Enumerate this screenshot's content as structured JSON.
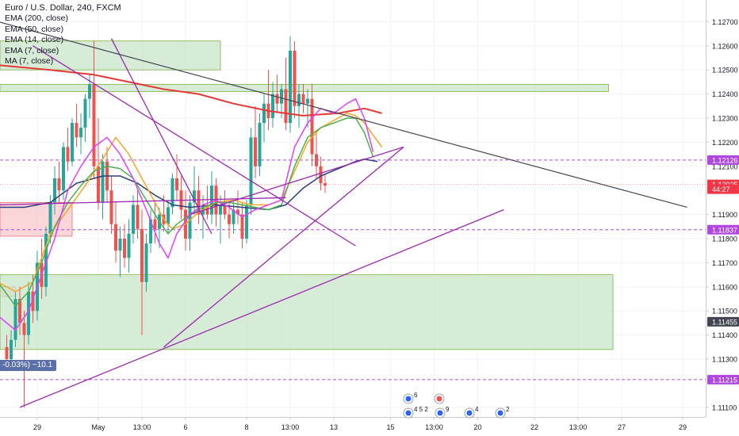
{
  "legend": {
    "title": "Euro / U.S. Dollar, 240, FXCM",
    "indicators": [
      "EMA (200, close)",
      "EMA (50, close)",
      "EMA (14, close)",
      "EMA (7, close)",
      "MA (7, close)"
    ]
  },
  "change_box": "-0.03%) −10.1",
  "colors": {
    "up": "#26a69a",
    "down": "#ef5350",
    "zone_green": "#c8e6c9",
    "zone_red": "#f8c8cc",
    "trendline_purple": "#9c27b0",
    "trendline_dark": "#434651",
    "ema200": "#e53935",
    "ema50": "#2c3e7c",
    "ema14": "#f5a623",
    "ema7": "#4caf50",
    "ma7": "#e040fb",
    "hline_purple": "#b048e0",
    "current_price": "#f23645",
    "badge_bg": "#2962ff"
  },
  "events": [
    {
      "label": "6"
    },
    {
      "label": "4 5 2"
    },
    {
      "label": "9"
    },
    {
      "label": "4"
    },
    {
      "label": "2"
    }
  ],
  "chart_data": {
    "type": "candlestick",
    "symbol": "EURUSD",
    "timeframe": "240",
    "y_axis": {
      "range": [
        1.1106,
        1.1279
      ],
      "ticks": [
        "1.12700",
        "1.12600",
        "1.12500",
        "1.12400",
        "1.12300",
        "1.12200",
        "1.12100",
        "1.11900",
        "1.11800",
        "1.11700",
        "1.11600",
        "1.11500",
        "1.11400",
        "1.11300",
        "1.11100"
      ]
    },
    "x_axis": {
      "ticks": [
        {
          "label": "29",
          "bar": 7
        },
        {
          "label": "May",
          "bar": 21
        },
        {
          "label": "13:00",
          "bar": 31
        },
        {
          "label": "6",
          "bar": 41
        },
        {
          "label": "8",
          "bar": 55
        },
        {
          "label": "13:00",
          "bar": 65
        },
        {
          "label": "13",
          "bar": 75
        },
        {
          "label": "15",
          "bar": 88
        },
        {
          "label": "13:00",
          "bar": 98
        },
        {
          "label": "20",
          "bar": 108
        },
        {
          "label": "22",
          "bar": 121
        },
        {
          "label": "13:00",
          "bar": 131
        },
        {
          "label": "27",
          "bar": 141
        },
        {
          "label": "29",
          "bar": 155
        }
      ]
    },
    "price_badges": [
      {
        "label": "1.12126",
        "value": 1.12126,
        "style": "purple"
      },
      {
        "label": "1.12025",
        "value": 1.12025,
        "style": "current"
      },
      {
        "label": "44:27",
        "value": 1.12005,
        "style": "current"
      },
      {
        "label": "1.11837",
        "value": 1.11837,
        "style": "purple"
      },
      {
        "label": "1.11455",
        "value": 1.11455,
        "style": "dark"
      },
      {
        "label": "1.11215",
        "value": 1.11215,
        "style": "purple"
      }
    ],
    "horizontal_lines": [
      1.12126,
      1.11837,
      1.11215
    ],
    "current_price": 1.12025,
    "zones": [
      {
        "bar_from": -2,
        "bar_to": 49,
        "price_top": 1.1262,
        "price_bottom": 1.125,
        "kind": "green"
      },
      {
        "bar_from": -2,
        "bar_to": 138,
        "price_top": 1.1244,
        "price_bottom": 1.1241,
        "kind": "green"
      },
      {
        "bar_from": -2,
        "bar_to": 15,
        "price_top": 1.1195,
        "price_bottom": 1.1181,
        "kind": "red"
      },
      {
        "bar_from": -2,
        "bar_to": 2,
        "price_top": 1.116,
        "price_bottom": 1.1156,
        "kind": "red"
      },
      {
        "bar_from": -2,
        "bar_to": 139,
        "price_top": 1.1165,
        "price_bottom": 1.1134,
        "kind": "green"
      }
    ],
    "trendlines": [
      {
        "from": [
          24,
          1.1263
        ],
        "to": [
          47,
          1.1182
        ],
        "color": "purple"
      },
      {
        "from": [
          6,
          1.126
        ],
        "to": [
          80,
          1.1177
        ],
        "color": "purple"
      },
      {
        "from": [
          42,
          1.119
        ],
        "to": [
          91,
          1.1218
        ],
        "color": "purple"
      },
      {
        "from": [
          36,
          1.1135
        ],
        "to": [
          91,
          1.1218
        ],
        "color": "purple"
      },
      {
        "from": [
          3,
          1.111
        ],
        "to": [
          114,
          1.1192
        ],
        "color": "purple"
      },
      {
        "from": [
          -2,
          1.1194
        ],
        "to": [
          64,
          1.1197
        ],
        "color": "purple"
      },
      {
        "from": [
          -2,
          1.127
        ],
        "to": [
          156,
          1.1193
        ],
        "color": "dark"
      }
    ],
    "series": [
      {
        "name": "EMA (200, close)",
        "color": "ema200",
        "points": [
          [
            -2,
            1.1252
          ],
          [
            10,
            1.125
          ],
          [
            20,
            1.1248
          ],
          [
            28,
            1.1245
          ],
          [
            36,
            1.1242
          ],
          [
            44,
            1.124
          ],
          [
            52,
            1.1236
          ],
          [
            60,
            1.1233
          ],
          [
            68,
            1.1231
          ],
          [
            76,
            1.1232
          ],
          [
            82,
            1.1234
          ],
          [
            86,
            1.1232
          ]
        ]
      },
      {
        "name": "EMA (50, close)",
        "color": "ema50",
        "points": [
          [
            -2,
            1.1193
          ],
          [
            4,
            1.1193
          ],
          [
            10,
            1.1195
          ],
          [
            16,
            1.1203
          ],
          [
            22,
            1.1206
          ],
          [
            26,
            1.1206
          ],
          [
            30,
            1.1203
          ],
          [
            34,
            1.1198
          ],
          [
            38,
            1.1194
          ],
          [
            42,
            1.1193
          ],
          [
            48,
            1.1194
          ],
          [
            54,
            1.1193
          ],
          [
            60,
            1.1192
          ],
          [
            64,
            1.1194
          ],
          [
            68,
            1.1201
          ],
          [
            72,
            1.1206
          ],
          [
            76,
            1.1209
          ],
          [
            80,
            1.1212
          ],
          [
            82,
            1.1213
          ],
          [
            85,
            1.1212
          ]
        ]
      },
      {
        "name": "EMA (14, close)",
        "color": "ema14",
        "points": [
          [
            -2,
            1.1162
          ],
          [
            2,
            1.1158
          ],
          [
            6,
            1.1162
          ],
          [
            10,
            1.1182
          ],
          [
            14,
            1.1192
          ],
          [
            18,
            1.1202
          ],
          [
            22,
            1.1213
          ],
          [
            25,
            1.1222
          ],
          [
            28,
            1.1215
          ],
          [
            31,
            1.1205
          ],
          [
            34,
            1.1195
          ],
          [
            36,
            1.1188
          ],
          [
            38,
            1.1184
          ],
          [
            41,
            1.1186
          ],
          [
            44,
            1.1191
          ],
          [
            48,
            1.1195
          ],
          [
            52,
            1.1196
          ],
          [
            56,
            1.1194
          ],
          [
            60,
            1.1194
          ],
          [
            63,
            1.1196
          ],
          [
            66,
            1.1208
          ],
          [
            69,
            1.122
          ],
          [
            72,
            1.1226
          ],
          [
            75,
            1.1229
          ],
          [
            78,
            1.1232
          ],
          [
            80,
            1.1231
          ],
          [
            82,
            1.1228
          ],
          [
            84,
            1.1223
          ],
          [
            86,
            1.1218
          ]
        ]
      },
      {
        "name": "EMA (7, close)",
        "color": "ema7",
        "points": [
          [
            -2,
            1.1162
          ],
          [
            2,
            1.1152
          ],
          [
            5,
            1.1158
          ],
          [
            8,
            1.117
          ],
          [
            11,
            1.1185
          ],
          [
            14,
            1.1195
          ],
          [
            17,
            1.1202
          ],
          [
            20,
            1.1208
          ],
          [
            23,
            1.121
          ],
          [
            26,
            1.1209
          ],
          [
            29,
            1.1205
          ],
          [
            32,
            1.1196
          ],
          [
            35,
            1.1187
          ],
          [
            37,
            1.1182
          ],
          [
            39,
            1.1186
          ],
          [
            42,
            1.119
          ],
          [
            45,
            1.1193
          ],
          [
            48,
            1.1195
          ],
          [
            51,
            1.1195
          ],
          [
            54,
            1.1194
          ],
          [
            57,
            1.1193
          ],
          [
            60,
            1.1192
          ],
          [
            63,
            1.1194
          ],
          [
            66,
            1.121
          ],
          [
            69,
            1.1222
          ],
          [
            72,
            1.1226
          ],
          [
            75,
            1.1228
          ],
          [
            78,
            1.123
          ],
          [
            80,
            1.123
          ],
          [
            82,
            1.1224
          ],
          [
            84,
            1.1214
          ]
        ]
      },
      {
        "name": "MA (7, close)",
        "color": "ma7",
        "points": [
          [
            -2,
            1.1148
          ],
          [
            2,
            1.1142
          ],
          [
            5,
            1.115
          ],
          [
            8,
            1.1165
          ],
          [
            11,
            1.118
          ],
          [
            14,
            1.12
          ],
          [
            17,
            1.121
          ],
          [
            20,
            1.1218
          ],
          [
            23,
            1.1222
          ],
          [
            26,
            1.1215
          ],
          [
            29,
            1.1205
          ],
          [
            32,
            1.1192
          ],
          [
            35,
            1.1178
          ],
          [
            37,
            1.1172
          ],
          [
            39,
            1.1182
          ],
          [
            42,
            1.119
          ],
          [
            45,
            1.1194
          ],
          [
            48,
            1.1196
          ],
          [
            51,
            1.1193
          ],
          [
            54,
            1.1189
          ],
          [
            57,
            1.1192
          ],
          [
            60,
            1.1194
          ],
          [
            63,
            1.1196
          ],
          [
            66,
            1.1218
          ],
          [
            69,
            1.1228
          ],
          [
            72,
            1.1234
          ],
          [
            75,
            1.1232
          ],
          [
            78,
            1.1236
          ],
          [
            80,
            1.1238
          ],
          [
            82,
            1.123
          ],
          [
            84,
            1.1216
          ]
        ]
      }
    ],
    "candles": [
      [
        1.1135,
        1.114,
        1.1125,
        1.113
      ],
      [
        1.113,
        1.1142,
        1.1128,
        1.1138
      ],
      [
        1.1138,
        1.1158,
        1.1135,
        1.1155
      ],
      [
        1.1155,
        1.116,
        1.114,
        1.1145
      ],
      [
        1.1145,
        1.115,
        1.111,
        1.114
      ],
      [
        1.114,
        1.1162,
        1.1136,
        1.1158
      ],
      [
        1.1158,
        1.1165,
        1.1145,
        1.115
      ],
      [
        1.115,
        1.1175,
        1.1146,
        1.117
      ],
      [
        1.117,
        1.118,
        1.1155,
        1.116
      ],
      [
        1.116,
        1.1185,
        1.1156,
        1.1182
      ],
      [
        1.1182,
        1.1198,
        1.1178,
        1.1195
      ],
      [
        1.1195,
        1.121,
        1.119,
        1.1205
      ],
      [
        1.1205,
        1.1212,
        1.1195,
        1.12
      ],
      [
        1.12,
        1.122,
        1.1196,
        1.1218
      ],
      [
        1.1218,
        1.1226,
        1.1208,
        1.1212
      ],
      [
        1.1212,
        1.123,
        1.121,
        1.1228
      ],
      [
        1.1228,
        1.1236,
        1.1218,
        1.1222
      ],
      [
        1.1222,
        1.1232,
        1.1215,
        1.1226
      ],
      [
        1.1226,
        1.124,
        1.122,
        1.1238
      ],
      [
        1.1238,
        1.1248,
        1.123,
        1.1244
      ],
      [
        1.1244,
        1.1262,
        1.1205,
        1.121
      ],
      [
        1.121,
        1.123,
        1.1192,
        1.1195
      ],
      [
        1.1195,
        1.1215,
        1.1188,
        1.1212
      ],
      [
        1.1212,
        1.1218,
        1.1195,
        1.12
      ],
      [
        1.12,
        1.1206,
        1.1182,
        1.1186
      ],
      [
        1.1186,
        1.1195,
        1.117,
        1.1175
      ],
      [
        1.1175,
        1.1185,
        1.1164,
        1.118
      ],
      [
        1.118,
        1.1186,
        1.1168,
        1.1172
      ],
      [
        1.1172,
        1.1188,
        1.1166,
        1.1182
      ],
      [
        1.1182,
        1.1198,
        1.1178,
        1.1194
      ],
      [
        1.1194,
        1.12,
        1.118,
        1.1184
      ],
      [
        1.1184,
        1.1192,
        1.114,
        1.1162
      ],
      [
        1.1162,
        1.1182,
        1.1158,
        1.1178
      ],
      [
        1.1178,
        1.1192,
        1.1174,
        1.1188
      ],
      [
        1.1188,
        1.1196,
        1.1178,
        1.1184
      ],
      [
        1.1184,
        1.1193,
        1.1176,
        1.119
      ],
      [
        1.119,
        1.1198,
        1.1183,
        1.1186
      ],
      [
        1.1186,
        1.1196,
        1.1182,
        1.1193
      ],
      [
        1.1193,
        1.1207,
        1.119,
        1.1205
      ],
      [
        1.1205,
        1.1215,
        1.1196,
        1.12
      ],
      [
        1.12,
        1.1206,
        1.1188,
        1.1192
      ],
      [
        1.1192,
        1.12,
        1.1175,
        1.118
      ],
      [
        1.118,
        1.1198,
        1.1175,
        1.1195
      ],
      [
        1.1195,
        1.121,
        1.119,
        1.12
      ],
      [
        1.12,
        1.1206,
        1.1186,
        1.119
      ],
      [
        1.119,
        1.1198,
        1.118,
        1.1194
      ],
      [
        1.1194,
        1.1202,
        1.1188,
        1.119
      ],
      [
        1.119,
        1.1208,
        1.1186,
        1.1202
      ],
      [
        1.1202,
        1.1205,
        1.1185,
        1.119
      ],
      [
        1.119,
        1.1198,
        1.1178,
        1.1194
      ],
      [
        1.1194,
        1.12,
        1.1188,
        1.119
      ],
      [
        1.119,
        1.1196,
        1.118,
        1.1186
      ],
      [
        1.1186,
        1.1196,
        1.1182,
        1.1192
      ],
      [
        1.1192,
        1.12,
        1.1186,
        1.119
      ],
      [
        1.119,
        1.1195,
        1.1176,
        1.118
      ],
      [
        1.118,
        1.1196,
        1.1178,
        1.1194
      ],
      [
        1.1194,
        1.1226,
        1.119,
        1.1222
      ],
      [
        1.1222,
        1.1235,
        1.1205,
        1.121
      ],
      [
        1.121,
        1.1232,
        1.1206,
        1.1228
      ],
      [
        1.1228,
        1.124,
        1.122,
        1.1236
      ],
      [
        1.1236,
        1.125,
        1.1225,
        1.123
      ],
      [
        1.123,
        1.1245,
        1.1226,
        1.124
      ],
      [
        1.124,
        1.1248,
        1.1232,
        1.1236
      ],
      [
        1.1236,
        1.1244,
        1.123,
        1.1242
      ],
      [
        1.1242,
        1.1255,
        1.1225,
        1.1228
      ],
      [
        1.1228,
        1.1264,
        1.1224,
        1.1258
      ],
      [
        1.1258,
        1.1262,
        1.123,
        1.1235
      ],
      [
        1.1235,
        1.1244,
        1.1226,
        1.124
      ],
      [
        1.124,
        1.1244,
        1.1232,
        1.1236
      ],
      [
        1.1236,
        1.1242,
        1.1226,
        1.1238
      ],
      [
        1.1238,
        1.1244,
        1.121,
        1.1215
      ],
      [
        1.1215,
        1.1225,
        1.1205,
        1.121
      ],
      [
        1.121,
        1.1214,
        1.12,
        1.1203
      ],
      [
        1.1203,
        1.1207,
        1.1199,
        1.1202
      ]
    ]
  }
}
